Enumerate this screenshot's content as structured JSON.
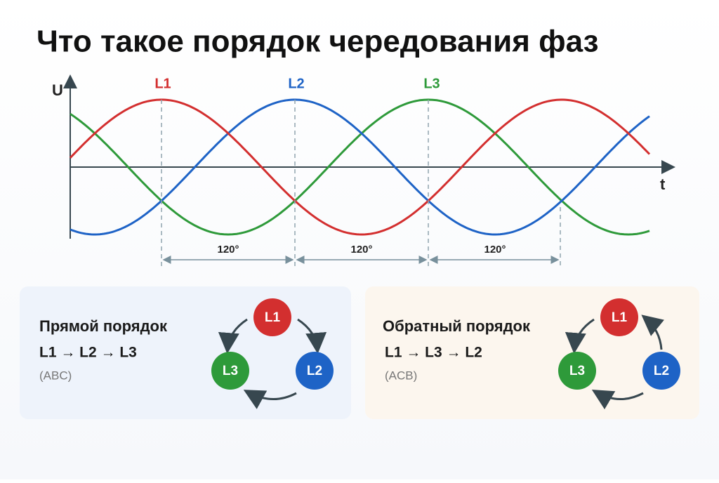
{
  "title": "Что такое порядок чередования фаз",
  "graph": {
    "y_axis": "U",
    "x_axis": "t",
    "phase_labels": [
      "L1",
      "L2",
      "L3"
    ],
    "angles": [
      "120°",
      "120°",
      "120°"
    ]
  },
  "cards": [
    {
      "title": "Прямой порядок",
      "sequence": "L1 → L2 → L3",
      "code": "(ABC)",
      "circles": [
        "L1",
        "L2",
        "L3"
      ]
    },
    {
      "title": "Обратный порядок",
      "sequence": "L1 → L3 → L2",
      "code": "(ACB)",
      "circles": [
        "L1",
        "L2",
        "L3"
      ]
    }
  ]
}
